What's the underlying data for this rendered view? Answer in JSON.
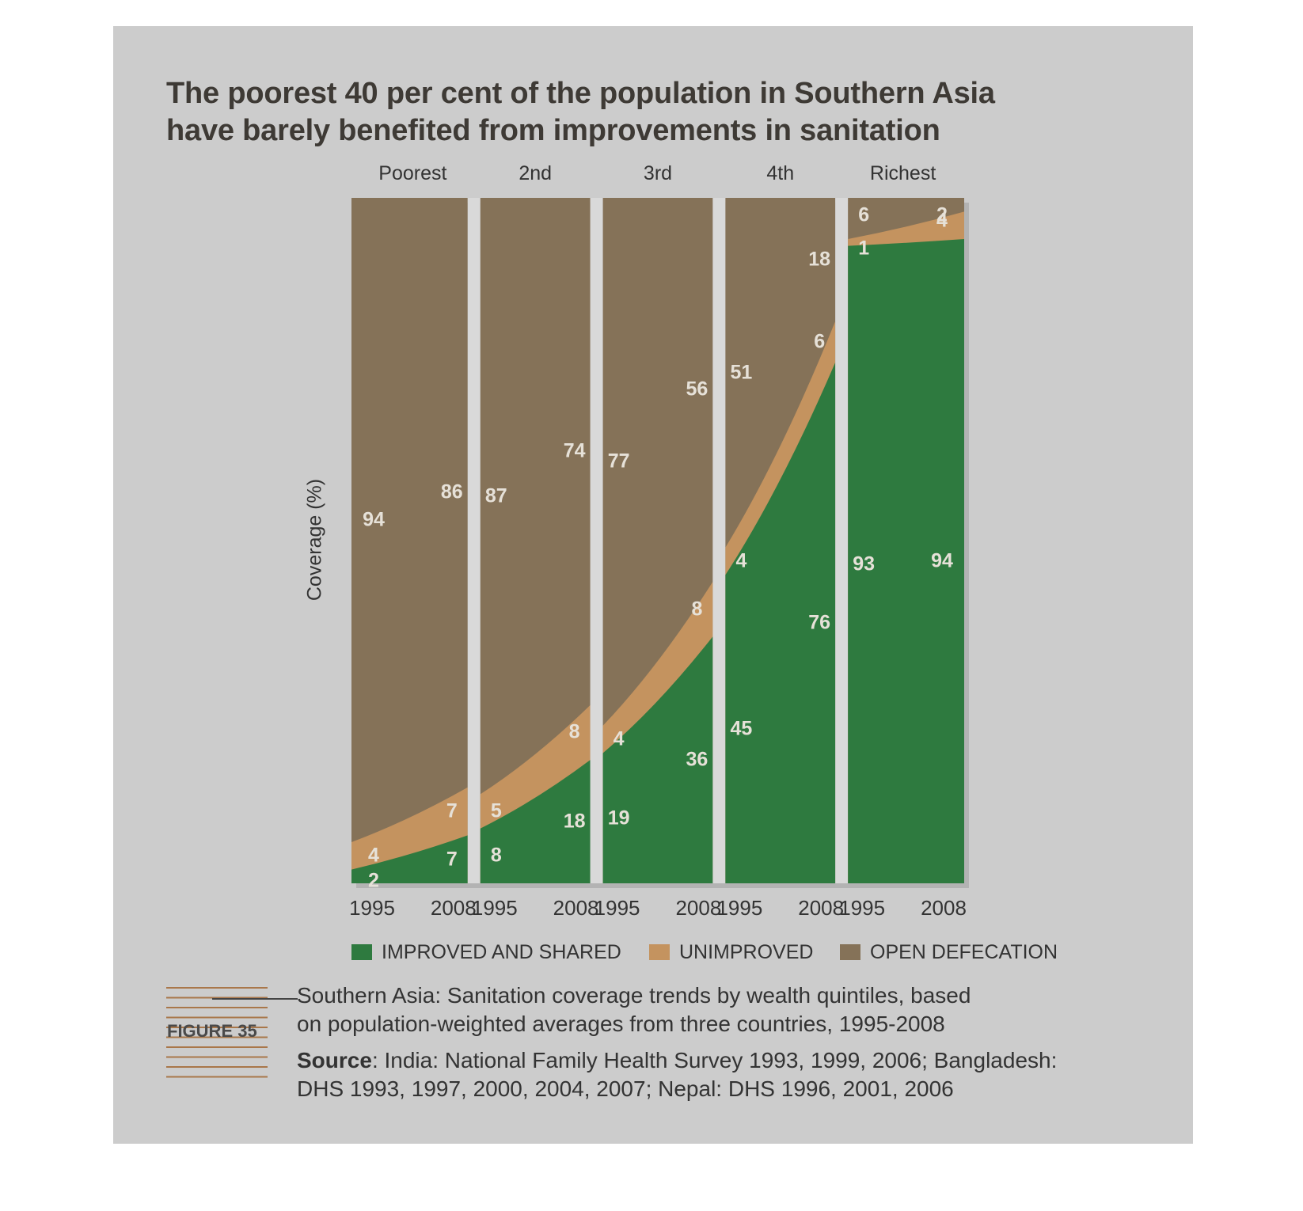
{
  "title_line1": "The poorest 40 per cent of the population in Southern Asia",
  "title_line2": "have barely benefited from improvements in sanitation",
  "figure_label": "FIGURE 35",
  "caption_line1": "Southern Asia: Sanitation coverage trends by wealth quintiles, based",
  "caption_line2": "on population-weighted averages from three countries, 1995-2008",
  "source_label": "Source",
  "source_line1_rest": ": India: National Family Health Survey 1993, 1999, 2006; Bangladesh:",
  "source_line2": "DHS 1993, 1997, 2000, 2004, 2007; Nepal: DHS 1996, 2001, 2006",
  "colors": {
    "improved": "#2e7a3f",
    "unimproved": "#c4935f",
    "open_defecation": "#857258",
    "background": "#cccccc",
    "separator": "#d9d9d9",
    "label_text": "#e6e1d8"
  },
  "chart_data": {
    "type": "area",
    "stacking": "stacked-percent",
    "ylabel": "Coverage (%)",
    "ylim": [
      0,
      100
    ],
    "quintiles": [
      "Poorest",
      "2nd",
      "3rd",
      "4th",
      "Richest"
    ],
    "years": [
      "1995",
      "2008"
    ],
    "series": [
      {
        "name": "IMPROVED AND SHARED",
        "values": [
          [
            2,
            7
          ],
          [
            8,
            18
          ],
          [
            19,
            36
          ],
          [
            45,
            76
          ],
          [
            93,
            94
          ]
        ]
      },
      {
        "name": "UNIMPROVED",
        "values": [
          [
            4,
            7
          ],
          [
            5,
            8
          ],
          [
            4,
            8
          ],
          [
            4,
            6
          ],
          [
            1,
            4
          ]
        ]
      },
      {
        "name": "OPEN DEFECATION",
        "values": [
          [
            94,
            86
          ],
          [
            87,
            74
          ],
          [
            77,
            56
          ],
          [
            51,
            18
          ],
          [
            6,
            2
          ]
        ]
      }
    ],
    "legend": [
      "IMPROVED AND SHARED",
      "UNIMPROVED",
      "OPEN DEFECATION"
    ],
    "legend_position": "bottom",
    "grid": false
  }
}
